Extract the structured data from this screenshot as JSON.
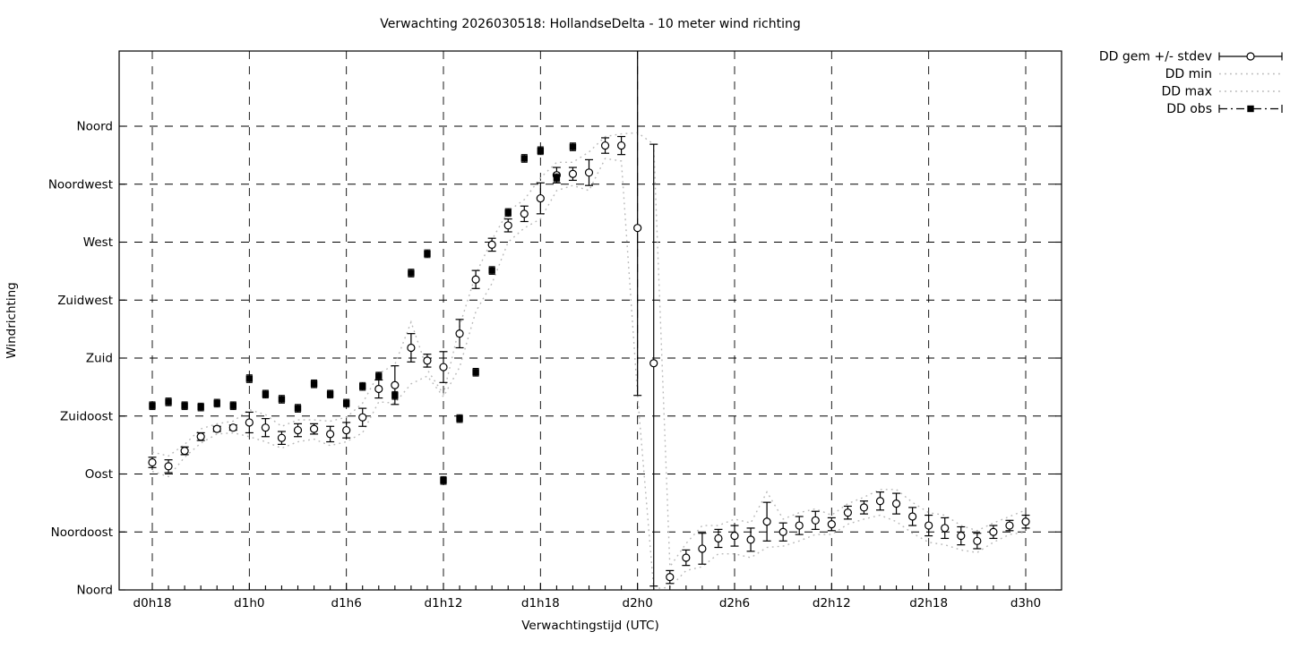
{
  "title": "Verwachting 2026030518: HollandseDelta - 10 meter wind richting",
  "axes": {
    "x": {
      "label": "Verwachtingstijd (UTC)",
      "ticks": [
        {
          "h": 0,
          "label": "d0h18"
        },
        {
          "h": 6,
          "label": "d1h0"
        },
        {
          "h": 12,
          "label": "d1h6"
        },
        {
          "h": 18,
          "label": "d1h12"
        },
        {
          "h": 24,
          "label": "d1h18"
        },
        {
          "h": 30,
          "label": "d2h0"
        },
        {
          "h": 36,
          "label": "d2h6"
        },
        {
          "h": 42,
          "label": "d2h12"
        },
        {
          "h": 48,
          "label": "d2h18"
        },
        {
          "h": 54,
          "label": "d3h0"
        }
      ]
    },
    "y": {
      "label": "Windrichting",
      "ticks": [
        {
          "deg": 360,
          "label": "Noord"
        },
        {
          "deg": 315,
          "label": "Noordwest"
        },
        {
          "deg": 270,
          "label": "West"
        },
        {
          "deg": 225,
          "label": "Zuidwest"
        },
        {
          "deg": 180,
          "label": "Zuid"
        },
        {
          "deg": 135,
          "label": "Zuidoost"
        },
        {
          "deg": 90,
          "label": "Oost"
        },
        {
          "deg": 45,
          "label": "Noordoost"
        },
        {
          "deg": 0,
          "label": "Noord"
        }
      ]
    }
  },
  "legend": [
    {
      "id": "dd-gem",
      "label": "DD gem +/- stdev",
      "style": "errorbar-circle"
    },
    {
      "id": "dd-min",
      "label": "DD min",
      "style": "dotted"
    },
    {
      "id": "dd-max",
      "label": "DD max",
      "style": "dotted"
    },
    {
      "id": "dd-obs",
      "label": "DD obs",
      "style": "dashdot-square"
    }
  ],
  "colors": {
    "foreground": "#000000",
    "minmax": "#b8b8b8",
    "background": "#ffffff"
  },
  "chart_data": {
    "type": "line",
    "title": "Verwachting 2026030518: HollandseDelta - 10 meter wind richting",
    "xlabel": "Verwachtingstijd (UTC)",
    "ylabel": "Windrichting",
    "x_unit": "hours since d0h18",
    "x_range_hours": [
      -2,
      56.2
    ],
    "y_range_deg": [
      0,
      418
    ],
    "grid": true,
    "legend_position": "outside-top-right",
    "hours": [
      0,
      1,
      2,
      3,
      4,
      5,
      6,
      7,
      8,
      9,
      10,
      11,
      12,
      13,
      14,
      15,
      16,
      17,
      18,
      19,
      20,
      21,
      22,
      23,
      24,
      25,
      26,
      27,
      28,
      29,
      30,
      31,
      32,
      33,
      34,
      35,
      36,
      37,
      38,
      39,
      40,
      41,
      42,
      43,
      44,
      45,
      46,
      47,
      48,
      49,
      50,
      51,
      52,
      53,
      54
    ],
    "series": [
      {
        "name": "DD gem +/- stdev",
        "kind": "mean-with-errorbars",
        "mean": [
          99,
          96,
          108,
          119,
          125,
          126,
          130,
          126,
          118,
          124,
          125,
          121,
          124,
          134,
          156,
          159,
          188,
          178,
          173,
          199,
          241,
          268,
          283,
          292,
          304,
          322,
          323,
          324,
          345,
          345,
          281,
          176,
          10,
          25,
          32,
          40,
          42,
          39,
          53,
          45,
          50,
          54,
          51,
          60,
          64,
          69,
          67,
          57,
          50,
          48,
          42,
          38,
          45,
          50,
          53
        ],
        "err_lo": [
          95,
          91,
          105,
          116,
          123,
          124,
          122,
          119,
          113,
          119,
          121,
          115,
          118,
          127,
          149,
          144,
          177,
          173,
          161,
          188,
          234,
          263,
          278,
          286,
          292,
          316,
          318,
          314,
          339,
          338,
          151,
          3,
          5,
          19,
          20,
          33,
          34,
          30,
          38,
          38,
          43,
          47,
          46,
          55,
          59,
          62,
          59,
          50,
          42,
          40,
          35,
          32,
          40,
          46,
          48
        ],
        "err_hi": [
          103,
          101,
          111,
          122,
          127,
          128,
          138,
          133,
          123,
          129,
          129,
          127,
          130,
          141,
          163,
          174,
          199,
          183,
          185,
          210,
          248,
          273,
          288,
          298,
          316,
          328,
          328,
          334,
          351,
          352,
          430,
          346,
          15,
          31,
          44,
          47,
          50,
          48,
          68,
          52,
          57,
          61,
          56,
          65,
          69,
          76,
          75,
          64,
          58,
          56,
          49,
          44,
          50,
          54,
          58
        ]
      },
      {
        "name": "DD min",
        "kind": "dotted-line",
        "values": [
          92,
          88,
          103,
          114,
          121,
          122,
          119,
          115,
          110,
          115,
          117,
          112,
          115,
          122,
          146,
          145,
          160,
          166,
          150,
          173,
          216,
          238,
          270,
          281,
          288,
          310,
          314,
          310,
          335,
          333,
          151,
          1,
          2,
          15,
          18,
          28,
          28,
          25,
          33,
          34,
          38,
          43,
          43,
          51,
          55,
          58,
          53,
          44,
          37,
          35,
          31,
          29,
          37,
          43,
          45
        ]
      },
      {
        "name": "DD max",
        "kind": "dotted-line",
        "values": [
          107,
          104,
          113,
          125,
          129,
          131,
          140,
          136,
          127,
          132,
          132,
          131,
          134,
          145,
          168,
          175,
          208,
          171,
          152,
          205,
          245,
          272,
          294,
          303,
          320,
          332,
          332,
          340,
          352,
          354,
          355,
          346,
          18,
          36,
          50,
          50,
          55,
          52,
          76,
          55,
          60,
          63,
          58,
          67,
          72,
          78,
          78,
          68,
          60,
          58,
          50,
          46,
          52,
          57,
          62
        ]
      },
      {
        "name": "DD obs",
        "kind": "filled-squares",
        "hours": [
          0,
          1,
          2,
          3,
          4,
          5,
          6,
          7,
          8,
          9,
          10,
          11,
          12,
          13,
          14,
          15,
          16,
          17,
          18,
          19,
          20,
          21,
          22,
          23,
          24,
          25,
          26
        ],
        "values": [
          143,
          146,
          143,
          142,
          145,
          143,
          164,
          152,
          148,
          141,
          160,
          152,
          145,
          158,
          166,
          151,
          246,
          261,
          85,
          133,
          169,
          248,
          293,
          335,
          341,
          320,
          344
        ],
        "err": 3
      }
    ]
  }
}
